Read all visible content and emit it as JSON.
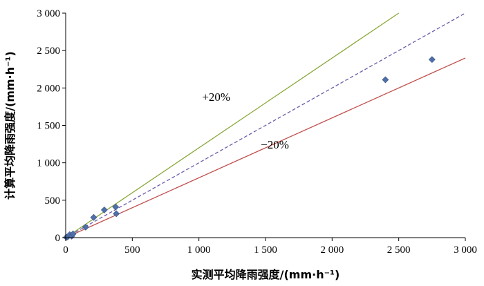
{
  "chart_data": {
    "type": "scatter",
    "xlabel": "实测平均降雨强度/(mm·h⁻¹)",
    "ylabel": "计算平均降雨强度/(mm·h⁻¹)",
    "xlim": [
      0,
      3000
    ],
    "ylim": [
      0,
      3000
    ],
    "xticks": [
      0,
      500,
      1000,
      1500,
      2000,
      2500,
      3000
    ],
    "yticks": [
      0,
      500,
      1000,
      1500,
      2000,
      2500,
      3000
    ],
    "x_tick_labels": [
      "0",
      "500",
      "1 000",
      "1 500",
      "2 000",
      "2 500",
      "3 000"
    ],
    "y_tick_labels": [
      "0",
      "500",
      "1 000",
      "1 500",
      "2 000",
      "2 500",
      "3 000"
    ],
    "grid": false,
    "points": {
      "marker": "diamond",
      "color": "#4f6fa8",
      "x": [
        5,
        15,
        30,
        45,
        55,
        150,
        210,
        290,
        375,
        380,
        2400,
        2750
      ],
      "y": [
        5,
        10,
        40,
        20,
        50,
        140,
        270,
        370,
        410,
        320,
        2110,
        2380
      ]
    },
    "lines": [
      {
        "slope": 1.2,
        "color": "#8aa83a",
        "style": "solid",
        "label": "+20%",
        "label_at": [
          1130,
          1830
        ]
      },
      {
        "slope": 1.0,
        "color": "#6b5aa8",
        "style": "dashed",
        "label": "",
        "label_at": null
      },
      {
        "slope": 0.8,
        "color": "#c0504d",
        "style": "solid",
        "label": "−20%",
        "label_at": [
          1570,
          1190
        ]
      }
    ]
  }
}
